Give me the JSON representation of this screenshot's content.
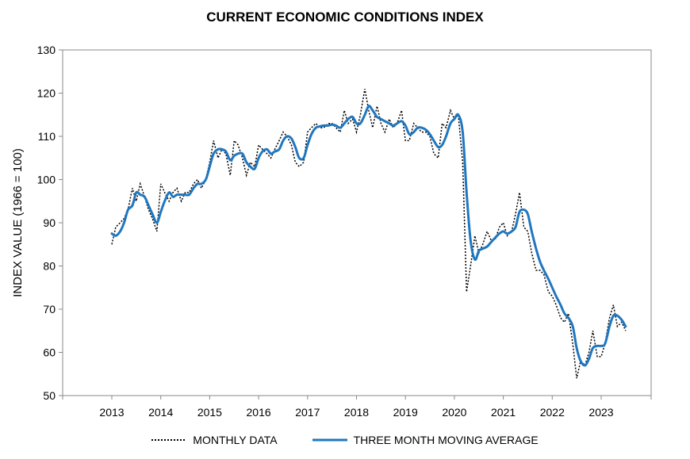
{
  "chart_data": {
    "type": "line",
    "title": "CURRENT ECONOMIC CONDITIONS INDEX",
    "xlabel": "",
    "ylabel": "INDEX VALUE (1966 = 100)",
    "xlim": [
      2013,
      2024
    ],
    "ylim": [
      50,
      130
    ],
    "x_ticks": [
      "2013",
      "2014",
      "2015",
      "2016",
      "2017",
      "2018",
      "2019",
      "2020",
      "2021",
      "2022",
      "2023"
    ],
    "y_ticks": [
      50,
      60,
      70,
      80,
      90,
      100,
      110,
      120,
      130
    ],
    "grid": false,
    "legend_position": "bottom",
    "series": [
      {
        "name": "MONTHLY DATA",
        "style": "dotted",
        "color": "#000000",
        "points": [
          [
            2013.0,
            85
          ],
          [
            2013.08,
            89
          ],
          [
            2013.17,
            90
          ],
          [
            2013.25,
            91
          ],
          [
            2013.33,
            93
          ],
          [
            2013.42,
            98
          ],
          [
            2013.5,
            95
          ],
          [
            2013.58,
            99
          ],
          [
            2013.67,
            96
          ],
          [
            2013.75,
            93
          ],
          [
            2013.83,
            91
          ],
          [
            2013.92,
            88
          ],
          [
            2014.0,
            99
          ],
          [
            2014.08,
            97
          ],
          [
            2014.17,
            95
          ],
          [
            2014.25,
            97
          ],
          [
            2014.33,
            98
          ],
          [
            2014.42,
            95
          ],
          [
            2014.5,
            97
          ],
          [
            2014.58,
            97
          ],
          [
            2014.67,
            99
          ],
          [
            2014.75,
            100
          ],
          [
            2014.83,
            98
          ],
          [
            2014.92,
            100
          ],
          [
            2015.0,
            104
          ],
          [
            2015.08,
            109
          ],
          [
            2015.17,
            105
          ],
          [
            2015.25,
            107
          ],
          [
            2015.33,
            106
          ],
          [
            2015.42,
            101
          ],
          [
            2015.5,
            109
          ],
          [
            2015.58,
            108
          ],
          [
            2015.67,
            105
          ],
          [
            2015.75,
            101
          ],
          [
            2015.83,
            104
          ],
          [
            2015.92,
            103
          ],
          [
            2016.0,
            108
          ],
          [
            2016.08,
            107
          ],
          [
            2016.17,
            106
          ],
          [
            2016.25,
            105
          ],
          [
            2016.33,
            107
          ],
          [
            2016.42,
            109
          ],
          [
            2016.5,
            111
          ],
          [
            2016.58,
            110
          ],
          [
            2016.67,
            108
          ],
          [
            2016.75,
            104
          ],
          [
            2016.83,
            103
          ],
          [
            2016.92,
            104
          ],
          [
            2017.0,
            111
          ],
          [
            2017.08,
            112
          ],
          [
            2017.17,
            113
          ],
          [
            2017.25,
            112
          ],
          [
            2017.33,
            112
          ],
          [
            2017.42,
            113
          ],
          [
            2017.5,
            113
          ],
          [
            2017.58,
            112
          ],
          [
            2017.67,
            111
          ],
          [
            2017.75,
            116
          ],
          [
            2017.83,
            113
          ],
          [
            2017.92,
            114
          ],
          [
            2018.0,
            111
          ],
          [
            2018.08,
            115
          ],
          [
            2018.17,
            121
          ],
          [
            2018.25,
            116
          ],
          [
            2018.33,
            112
          ],
          [
            2018.42,
            117
          ],
          [
            2018.5,
            113
          ],
          [
            2018.58,
            111
          ],
          [
            2018.67,
            114
          ],
          [
            2018.75,
            112
          ],
          [
            2018.83,
            113
          ],
          [
            2018.92,
            116
          ],
          [
            2019.0,
            109
          ],
          [
            2019.08,
            109
          ],
          [
            2019.17,
            113
          ],
          [
            2019.25,
            112
          ],
          [
            2019.33,
            111
          ],
          [
            2019.42,
            111
          ],
          [
            2019.5,
            110
          ],
          [
            2019.58,
            106
          ],
          [
            2019.67,
            105
          ],
          [
            2019.75,
            113
          ],
          [
            2019.83,
            112
          ],
          [
            2019.92,
            116
          ],
          [
            2020.0,
            114
          ],
          [
            2020.08,
            115
          ],
          [
            2020.17,
            104
          ],
          [
            2020.25,
            74
          ],
          [
            2020.33,
            80
          ],
          [
            2020.42,
            87
          ],
          [
            2020.5,
            83
          ],
          [
            2020.58,
            85
          ],
          [
            2020.67,
            88
          ],
          [
            2020.75,
            86
          ],
          [
            2020.83,
            86
          ],
          [
            2020.92,
            89
          ],
          [
            2021.0,
            90
          ],
          [
            2021.08,
            87
          ],
          [
            2021.17,
            88
          ],
          [
            2021.25,
            92
          ],
          [
            2021.33,
            97
          ],
          [
            2021.42,
            89
          ],
          [
            2021.5,
            88
          ],
          [
            2021.58,
            83
          ],
          [
            2021.67,
            79
          ],
          [
            2021.75,
            79
          ],
          [
            2021.83,
            78
          ],
          [
            2021.92,
            74
          ],
          [
            2022.0,
            73
          ],
          [
            2022.08,
            71
          ],
          [
            2022.17,
            68
          ],
          [
            2022.25,
            67
          ],
          [
            2022.33,
            69
          ],
          [
            2022.42,
            62
          ],
          [
            2022.5,
            54
          ],
          [
            2022.58,
            58
          ],
          [
            2022.67,
            57
          ],
          [
            2022.75,
            60
          ],
          [
            2022.83,
            65
          ],
          [
            2022.92,
            59
          ],
          [
            2023.0,
            59
          ],
          [
            2023.08,
            62
          ],
          [
            2023.17,
            68
          ],
          [
            2023.25,
            71
          ],
          [
            2023.33,
            66
          ],
          [
            2023.42,
            67
          ],
          [
            2023.5,
            65
          ]
        ]
      },
      {
        "name": "THREE MONTH MOVING AVERAGE",
        "style": "solid",
        "color": "#1f77c0",
        "points": [
          [
            2013.0,
            87.5
          ],
          [
            2013.08,
            87
          ],
          [
            2013.17,
            88
          ],
          [
            2013.25,
            90
          ],
          [
            2013.33,
            93
          ],
          [
            2013.42,
            94
          ],
          [
            2013.5,
            97
          ],
          [
            2013.58,
            96.5
          ],
          [
            2013.67,
            96
          ],
          [
            2013.75,
            94
          ],
          [
            2013.83,
            92
          ],
          [
            2013.92,
            90
          ],
          [
            2014.0,
            92.5
          ],
          [
            2014.08,
            95
          ],
          [
            2014.17,
            97
          ],
          [
            2014.25,
            96
          ],
          [
            2014.33,
            96.5
          ],
          [
            2014.42,
            96.5
          ],
          [
            2014.5,
            96.5
          ],
          [
            2014.58,
            96.5
          ],
          [
            2014.67,
            98
          ],
          [
            2014.75,
            99
          ],
          [
            2014.83,
            99
          ],
          [
            2014.92,
            100
          ],
          [
            2015.0,
            103
          ],
          [
            2015.08,
            106
          ],
          [
            2015.17,
            107
          ],
          [
            2015.25,
            107
          ],
          [
            2015.33,
            106.5
          ],
          [
            2015.42,
            104.5
          ],
          [
            2015.5,
            105.5
          ],
          [
            2015.58,
            106
          ],
          [
            2015.67,
            106
          ],
          [
            2015.75,
            104
          ],
          [
            2015.83,
            103
          ],
          [
            2015.92,
            102.5
          ],
          [
            2016.0,
            105
          ],
          [
            2016.08,
            106.5
          ],
          [
            2016.17,
            107
          ],
          [
            2016.25,
            106
          ],
          [
            2016.33,
            106.5
          ],
          [
            2016.42,
            107
          ],
          [
            2016.5,
            109
          ],
          [
            2016.58,
            110
          ],
          [
            2016.67,
            109.5
          ],
          [
            2016.75,
            107.5
          ],
          [
            2016.83,
            105
          ],
          [
            2016.92,
            105
          ],
          [
            2017.0,
            108
          ],
          [
            2017.08,
            110.5
          ],
          [
            2017.17,
            112
          ],
          [
            2017.25,
            112.3
          ],
          [
            2017.33,
            112.5
          ],
          [
            2017.42,
            112.5
          ],
          [
            2017.5,
            112.7
          ],
          [
            2017.58,
            112.5
          ],
          [
            2017.67,
            112
          ],
          [
            2017.75,
            113
          ],
          [
            2017.83,
            114
          ],
          [
            2017.92,
            114.5
          ],
          [
            2018.0,
            113
          ],
          [
            2018.08,
            113
          ],
          [
            2018.17,
            115
          ],
          [
            2018.25,
            117
          ],
          [
            2018.33,
            116
          ],
          [
            2018.42,
            114.5
          ],
          [
            2018.5,
            114
          ],
          [
            2018.58,
            113.5
          ],
          [
            2018.67,
            113
          ],
          [
            2018.75,
            112.5
          ],
          [
            2018.83,
            113
          ],
          [
            2018.92,
            113.5
          ],
          [
            2019.0,
            112.5
          ],
          [
            2019.08,
            110.5
          ],
          [
            2019.17,
            111
          ],
          [
            2019.25,
            112
          ],
          [
            2019.33,
            112
          ],
          [
            2019.42,
            111.5
          ],
          [
            2019.5,
            110.5
          ],
          [
            2019.58,
            109
          ],
          [
            2019.67,
            107.5
          ],
          [
            2019.75,
            108
          ],
          [
            2019.83,
            110
          ],
          [
            2019.92,
            113
          ],
          [
            2020.0,
            114
          ],
          [
            2020.08,
            115
          ],
          [
            2020.17,
            111
          ],
          [
            2020.25,
            97
          ],
          [
            2020.33,
            86
          ],
          [
            2020.42,
            81.5
          ],
          [
            2020.5,
            83.5
          ],
          [
            2020.58,
            84
          ],
          [
            2020.67,
            84.5
          ],
          [
            2020.75,
            85.5
          ],
          [
            2020.83,
            86.5
          ],
          [
            2020.92,
            87.5
          ],
          [
            2021.0,
            88
          ],
          [
            2021.08,
            87.5
          ],
          [
            2021.17,
            88
          ],
          [
            2021.25,
            89
          ],
          [
            2021.33,
            92.5
          ],
          [
            2021.42,
            93
          ],
          [
            2021.5,
            92
          ],
          [
            2021.58,
            88
          ],
          [
            2021.67,
            84
          ],
          [
            2021.75,
            81
          ],
          [
            2021.83,
            79
          ],
          [
            2021.92,
            77
          ],
          [
            2022.0,
            75
          ],
          [
            2022.08,
            73
          ],
          [
            2022.17,
            71
          ],
          [
            2022.25,
            69
          ],
          [
            2022.33,
            68
          ],
          [
            2022.42,
            66
          ],
          [
            2022.5,
            61
          ],
          [
            2022.58,
            58
          ],
          [
            2022.67,
            57
          ],
          [
            2022.75,
            58.5
          ],
          [
            2022.83,
            61
          ],
          [
            2022.92,
            61.5
          ],
          [
            2023.0,
            61.5
          ],
          [
            2023.08,
            62
          ],
          [
            2023.17,
            66
          ],
          [
            2023.25,
            68.5
          ],
          [
            2023.33,
            68.5
          ],
          [
            2023.42,
            67.5
          ],
          [
            2023.5,
            66
          ]
        ]
      }
    ]
  }
}
